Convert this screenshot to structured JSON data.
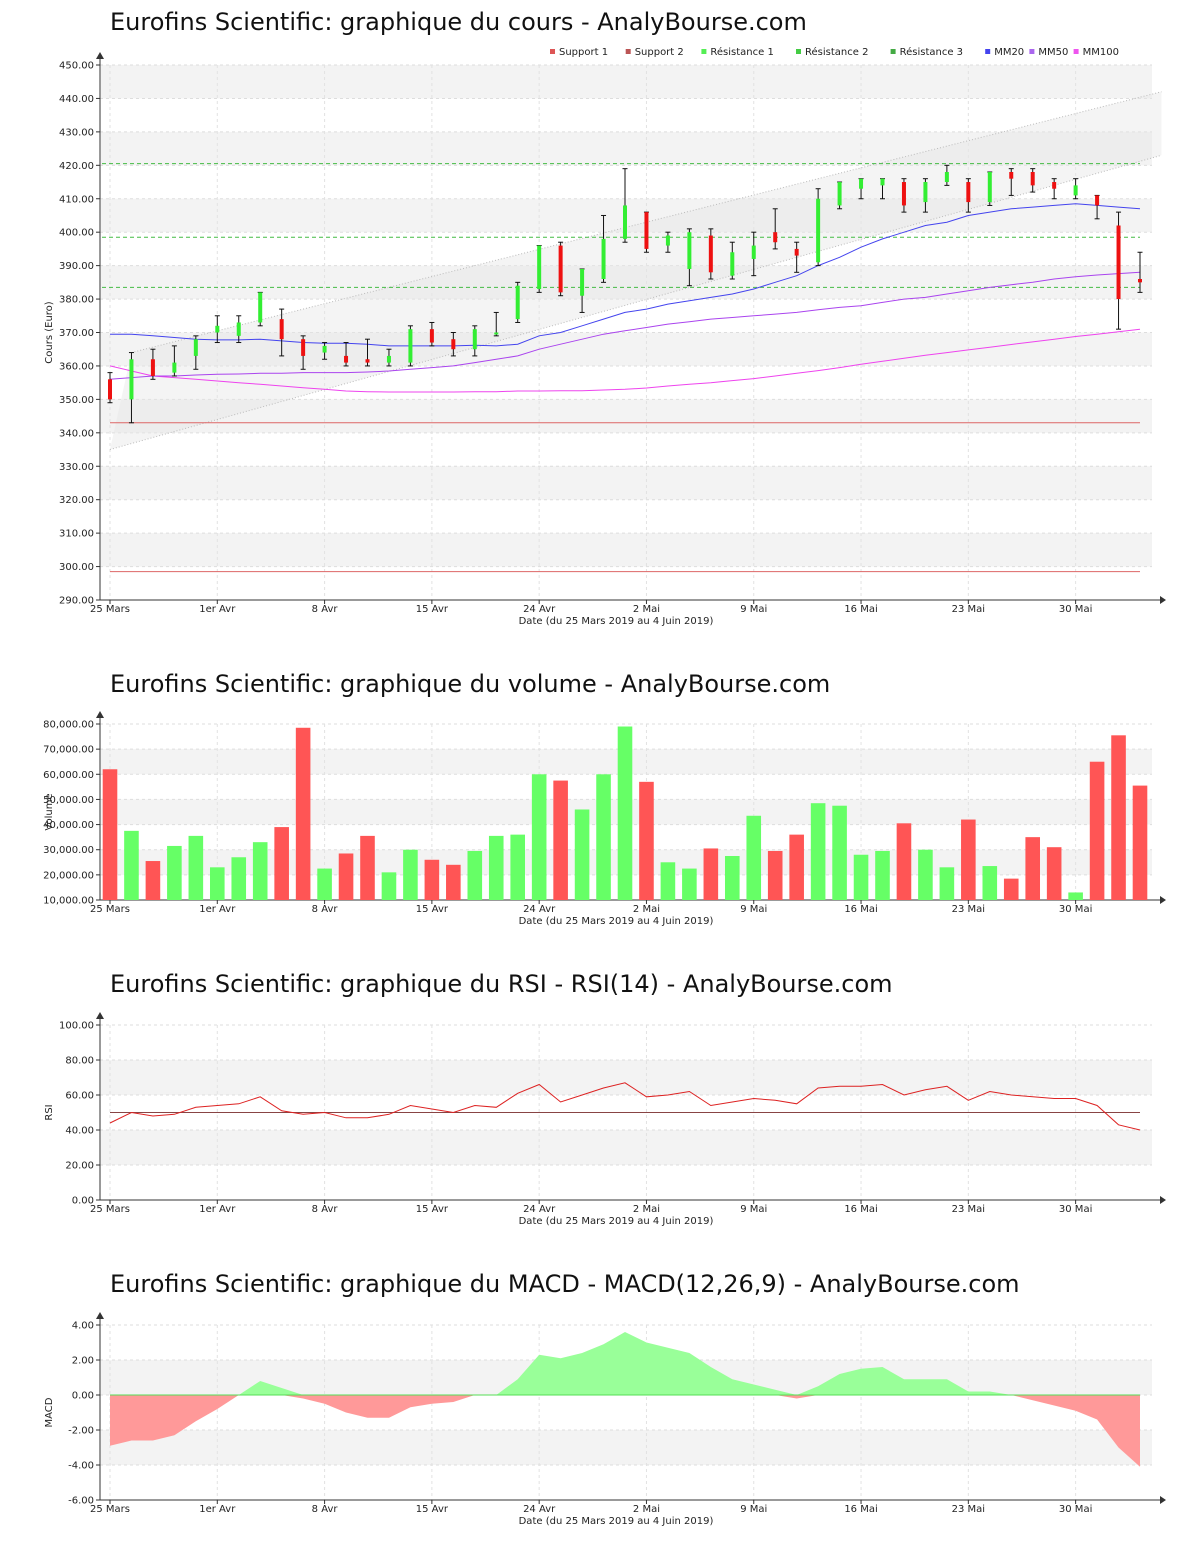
{
  "x_axis": {
    "ticks": [
      "25 Mars",
      "1er Avr",
      "8 Avr",
      "15 Avr",
      "24 Avr",
      "2 Mai",
      "9 Mai",
      "16 Mai",
      "23 Mai",
      "30 Mai"
    ],
    "tick_index": [
      0,
      5,
      10,
      15,
      20,
      25,
      30,
      35,
      40,
      45
    ],
    "label": "Date (du 25 Mars 2019 au 4 Juin 2019)"
  },
  "colors": {
    "up": "#33ee33",
    "down": "#ee1111",
    "bar_up": "#66ff66",
    "bar_down": "#ff5555",
    "mm20": "#4444ee",
    "mm50": "#aa44ee",
    "mm100": "#ee44ee",
    "support": "#dd6666",
    "resistance": "#44bb44"
  },
  "chart_data": [
    {
      "id": "price",
      "type": "candlestick",
      "title": "Eurofins Scientific: graphique du cours - AnalyBourse.com",
      "ylabel": "Cours (Euro)",
      "xlabel": "Date (du 25 Mars 2019 au 4 Juin 2019)",
      "ylim": [
        290,
        450
      ],
      "yticks": [
        "290.00",
        "300.00",
        "310.00",
        "320.00",
        "330.00",
        "340.00",
        "350.00",
        "360.00",
        "370.00",
        "380.00",
        "390.00",
        "400.00",
        "410.00",
        "420.00",
        "430.00",
        "440.00",
        "450.00"
      ],
      "legend": [
        "Support 1",
        "Support 2",
        "Résistance 1",
        "Résistance 2",
        "Résistance 3",
        "MM20",
        "MM50",
        "MM100"
      ],
      "legend_colors": [
        "#dd5555",
        "#bb5555",
        "#55ee55",
        "#44cc44",
        "#44aa44",
        "#4444ee",
        "#aa66ee",
        "#ee55ee"
      ],
      "candles": [
        {
          "o": 356,
          "c": 350,
          "h": 358,
          "l": 349
        },
        {
          "o": 350,
          "c": 362,
          "h": 364,
          "l": 343
        },
        {
          "o": 362,
          "c": 357,
          "h": 365,
          "l": 356
        },
        {
          "o": 358,
          "c": 361,
          "h": 366,
          "l": 357
        },
        {
          "o": 363,
          "c": 368,
          "h": 369,
          "l": 359
        },
        {
          "o": 370,
          "c": 372,
          "h": 375,
          "l": 367
        },
        {
          "o": 369,
          "c": 373,
          "h": 375,
          "l": 367
        },
        {
          "o": 373,
          "c": 382,
          "h": 382,
          "l": 372
        },
        {
          "o": 374,
          "c": 368,
          "h": 377,
          "l": 363
        },
        {
          "o": 368,
          "c": 363,
          "h": 369,
          "l": 359
        },
        {
          "o": 364,
          "c": 366,
          "h": 367,
          "l": 362
        },
        {
          "o": 363,
          "c": 361,
          "h": 367,
          "l": 360
        },
        {
          "o": 362,
          "c": 361,
          "h": 368,
          "l": 360
        },
        {
          "o": 361,
          "c": 363,
          "h": 365,
          "l": 360
        },
        {
          "o": 361,
          "c": 371,
          "h": 372,
          "l": 360
        },
        {
          "o": 371,
          "c": 367,
          "h": 373,
          "l": 366
        },
        {
          "o": 368,
          "c": 365,
          "h": 370,
          "l": 363
        },
        {
          "o": 365,
          "c": 371,
          "h": 372,
          "l": 363
        },
        {
          "o": 370,
          "c": 370,
          "h": 376,
          "l": 369
        },
        {
          "o": 374,
          "c": 384,
          "h": 385,
          "l": 373
        },
        {
          "o": 383,
          "c": 396,
          "h": 396,
          "l": 382
        },
        {
          "o": 396,
          "c": 382,
          "h": 397,
          "l": 381
        },
        {
          "o": 381,
          "c": 389,
          "h": 389,
          "l": 376
        },
        {
          "o": 386,
          "c": 398,
          "h": 405,
          "l": 385
        },
        {
          "o": 398,
          "c": 408,
          "h": 419,
          "l": 397
        },
        {
          "o": 406,
          "c": 395,
          "h": 406,
          "l": 394
        },
        {
          "o": 396,
          "c": 399,
          "h": 400,
          "l": 394
        },
        {
          "o": 389,
          "c": 400,
          "h": 401,
          "l": 384
        },
        {
          "o": 399,
          "c": 388,
          "h": 401,
          "l": 386
        },
        {
          "o": 387,
          "c": 394,
          "h": 397,
          "l": 386
        },
        {
          "o": 392,
          "c": 396,
          "h": 400,
          "l": 387
        },
        {
          "o": 400,
          "c": 397,
          "h": 407,
          "l": 395
        },
        {
          "o": 395,
          "c": 393,
          "h": 397,
          "l": 388
        },
        {
          "o": 391,
          "c": 410,
          "h": 413,
          "l": 390
        },
        {
          "o": 408,
          "c": 415,
          "h": 415,
          "l": 407
        },
        {
          "o": 413,
          "c": 416,
          "h": 416,
          "l": 410
        },
        {
          "o": 414,
          "c": 416,
          "h": 416,
          "l": 410
        },
        {
          "o": 415,
          "c": 408,
          "h": 416,
          "l": 406
        },
        {
          "o": 409,
          "c": 415,
          "h": 416,
          "l": 406
        },
        {
          "o": 415,
          "c": 418,
          "h": 420,
          "l": 414
        },
        {
          "o": 415,
          "c": 409,
          "h": 416,
          "l": 406
        },
        {
          "o": 409,
          "c": 418,
          "h": 418,
          "l": 408
        },
        {
          "o": 418,
          "c": 416,
          "h": 419,
          "l": 411
        },
        {
          "o": 418,
          "c": 414,
          "h": 419,
          "l": 412
        },
        {
          "o": 415,
          "c": 413,
          "h": 416,
          "l": 410
        },
        {
          "o": 411,
          "c": 414,
          "h": 416,
          "l": 410
        },
        {
          "o": 411,
          "c": 408,
          "h": 411,
          "l": 404
        },
        {
          "o": 402,
          "c": 380,
          "h": 406,
          "l": 371
        },
        {
          "o": 386,
          "c": 385,
          "h": 394,
          "l": 382
        }
      ],
      "mm20": [
        369.5,
        369.5,
        369,
        368.5,
        368,
        367.8,
        367.8,
        368,
        367.5,
        367,
        366.8,
        366.8,
        366.5,
        366,
        366,
        366,
        366,
        366.2,
        366,
        366.5,
        369,
        370,
        372,
        374,
        376,
        377,
        378.5,
        379.5,
        380.5,
        381.5,
        383,
        385,
        387,
        390,
        392.5,
        395.5,
        398,
        400,
        402,
        403,
        405,
        406,
        407,
        407.5,
        408,
        408.5,
        408,
        407.5,
        407
      ],
      "mm50": [
        356,
        356.5,
        357,
        357,
        357.3,
        357.5,
        357.6,
        357.8,
        357.8,
        358,
        358,
        358,
        358.2,
        358.5,
        359,
        359.5,
        360,
        361,
        362,
        363,
        365,
        366.5,
        368,
        369.5,
        370.5,
        371.5,
        372.5,
        373.2,
        374,
        374.5,
        375,
        375.5,
        376,
        376.8,
        377.5,
        378,
        379,
        380,
        380.5,
        381.5,
        382.5,
        383.5,
        384.3,
        385,
        386,
        386.7,
        387.2,
        387.6,
        388
      ],
      "mm100": [
        360,
        358.5,
        357,
        356.5,
        356,
        355.5,
        355,
        354.5,
        354,
        353.5,
        353,
        352.5,
        352.3,
        352.2,
        352.2,
        352.2,
        352.2,
        352.3,
        352.3,
        352.5,
        352.5,
        352.6,
        352.6,
        352.8,
        353,
        353.4,
        354,
        354.5,
        355,
        355.6,
        356.2,
        357,
        357.8,
        358.6,
        359.5,
        360.5,
        361.4,
        362.3,
        363.2,
        364,
        364.8,
        365.6,
        366.4,
        367.2,
        368,
        368.8,
        369.5,
        370.2,
        371
      ],
      "resistance_levels": [
        420.5,
        398.5,
        383.5
      ],
      "support_levels": [
        343,
        298.5
      ],
      "channel_upper": [
        [
          1,
          364
        ],
        [
          49,
          442
        ]
      ],
      "channel_lower": [
        [
          0,
          335
        ],
        [
          49,
          423
        ]
      ]
    },
    {
      "id": "volume",
      "type": "bar",
      "title": "Eurofins Scientific: graphique du volume - AnalyBourse.com",
      "ylabel": "Volume",
      "xlabel": "Date (du 25 Mars 2019 au 4 Juin 2019)",
      "ylim": [
        10000,
        80000
      ],
      "yticks": [
        "10,000.00",
        "20,000.00",
        "30,000.00",
        "40,000.00",
        "50,000.00",
        "60,000.00",
        "70,000.00",
        "80,000.00"
      ],
      "values": [
        62000,
        37500,
        25500,
        31500,
        35500,
        23000,
        27000,
        33000,
        39000,
        78500,
        22500,
        28500,
        35500,
        21000,
        30000,
        26000,
        24000,
        29500,
        35500,
        36000,
        60000,
        57500,
        46000,
        60000,
        79000,
        57000,
        25000,
        22500,
        30500,
        27500,
        43500,
        29500,
        36000,
        48500,
        47500,
        28000,
        29500,
        40500,
        30000,
        23000,
        42000,
        23500,
        18500,
        35000,
        31000,
        13000,
        65000,
        75500,
        55500
      ],
      "up": [
        false,
        true,
        false,
        true,
        true,
        true,
        true,
        true,
        false,
        false,
        true,
        false,
        false,
        true,
        true,
        false,
        false,
        true,
        true,
        true,
        true,
        false,
        true,
        true,
        true,
        false,
        true,
        true,
        false,
        true,
        true,
        false,
        false,
        true,
        true,
        true,
        true,
        false,
        true,
        true,
        false,
        true,
        false,
        false,
        false,
        true,
        false,
        false,
        false
      ]
    },
    {
      "id": "rsi",
      "type": "line",
      "title": "Eurofins Scientific: graphique du RSI - RSI(14) - AnalyBourse.com",
      "ylabel": "RSI",
      "xlabel": "Date (du 25 Mars 2019 au 4 Juin 2019)",
      "ylim": [
        0,
        100
      ],
      "yticks": [
        "0.00",
        "20.00",
        "40.00",
        "60.00",
        "80.00",
        "100.00"
      ],
      "reference": 50,
      "values": [
        44,
        50,
        48,
        49,
        53,
        54,
        55,
        59,
        51,
        49,
        50,
        47,
        47,
        49,
        54,
        52,
        50,
        54,
        53,
        61,
        66,
        56,
        60,
        64,
        67,
        59,
        60,
        62,
        54,
        56,
        58,
        57,
        55,
        64,
        65,
        65,
        66,
        60,
        63,
        65,
        57,
        62,
        60,
        59,
        58,
        58,
        54,
        43,
        40
      ]
    },
    {
      "id": "macd",
      "type": "area",
      "title": "Eurofins Scientific: graphique du MACD - MACD(12,26,9) - AnalyBourse.com",
      "ylabel": "MACD",
      "xlabel": "Date (du 25 Mars 2019 au 4 Juin 2019)",
      "ylim": [
        -6,
        4
      ],
      "yticks": [
        "-6.00",
        "-4.00",
        "-2.00",
        "0.00",
        "2.00",
        "4.00"
      ],
      "values": [
        -2.9,
        -2.6,
        -2.6,
        -2.3,
        -1.5,
        -0.8,
        0.0,
        0.8,
        0.4,
        -0.2,
        -0.5,
        -1.0,
        -1.3,
        -1.3,
        -0.7,
        -0.5,
        -0.4,
        0.0,
        0.0,
        0.9,
        2.3,
        2.1,
        2.4,
        2.9,
        3.6,
        3.0,
        2.7,
        2.4,
        1.6,
        0.9,
        0.6,
        0.3,
        -0.2,
        0.5,
        1.2,
        1.5,
        1.6,
        0.9,
        0.9,
        0.9,
        0.2,
        0.2,
        0.0,
        -0.3,
        -0.6,
        -0.9,
        -1.4,
        -3.0,
        -4.1
      ]
    }
  ]
}
